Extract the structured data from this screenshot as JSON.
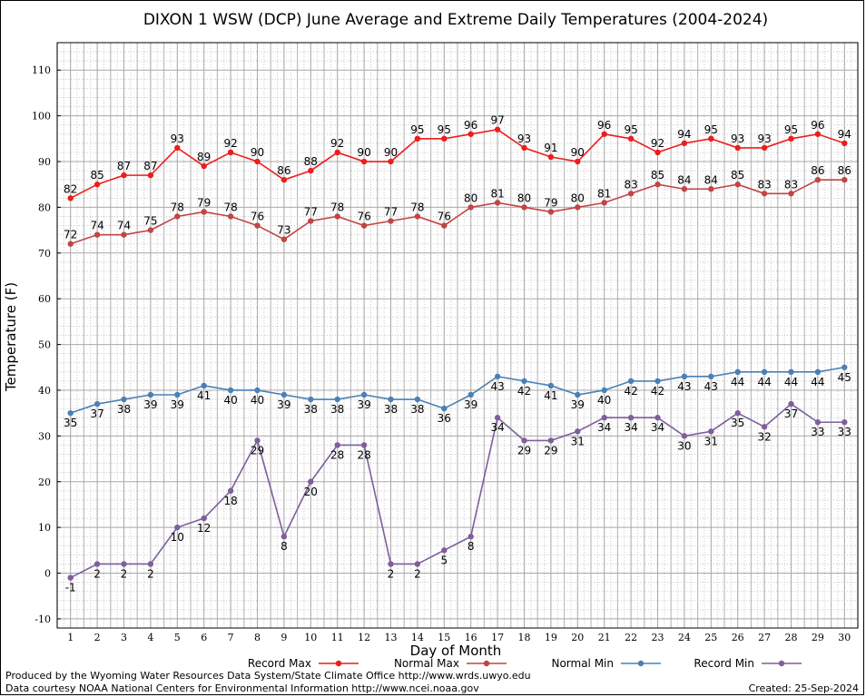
{
  "chart_data": {
    "type": "line",
    "title": "DIXON 1 WSW (DCP) June Average and Extreme Daily Temperatures (2004-2024)",
    "xlabel": "Day of Month",
    "ylabel": "Temperature (F)",
    "ylim": [
      -12,
      116
    ],
    "yticks": [
      -10,
      0,
      10,
      20,
      30,
      40,
      50,
      60,
      70,
      80,
      90,
      100,
      110
    ],
    "x": [
      1,
      2,
      3,
      4,
      5,
      6,
      7,
      8,
      9,
      10,
      11,
      12,
      13,
      14,
      15,
      16,
      17,
      18,
      19,
      20,
      21,
      22,
      23,
      24,
      25,
      26,
      27,
      28,
      29,
      30
    ],
    "grid": true,
    "legend_position": "bottom",
    "series": [
      {
        "name": "Record Max",
        "color": "#ee1c1c",
        "values": [
          82,
          85,
          87,
          87,
          93,
          89,
          92,
          90,
          86,
          88,
          92,
          90,
          90,
          95,
          95,
          96,
          97,
          93,
          91,
          90,
          96,
          95,
          92,
          94,
          95,
          93,
          93,
          95,
          96,
          94
        ]
      },
      {
        "name": "Normal Max",
        "color": "#c04545",
        "values": [
          72,
          74,
          74,
          75,
          78,
          79,
          78,
          76,
          73,
          77,
          78,
          76,
          77,
          78,
          76,
          80,
          81,
          80,
          79,
          80,
          81,
          83,
          85,
          84,
          84,
          85,
          83,
          83,
          86,
          86
        ]
      },
      {
        "name": "Normal Min",
        "color": "#4a80b5",
        "values": [
          35,
          37,
          38,
          39,
          39,
          41,
          40,
          40,
          39,
          38,
          38,
          39,
          38,
          38,
          36,
          39,
          43,
          42,
          41,
          39,
          40,
          42,
          42,
          43,
          43,
          44,
          44,
          44,
          44,
          45
        ]
      },
      {
        "name": "Record Min",
        "color": "#7e5e9c",
        "values": [
          -1,
          2,
          2,
          2,
          10,
          12,
          18,
          29,
          8,
          20,
          28,
          28,
          2,
          2,
          5,
          8,
          34,
          29,
          29,
          31,
          34,
          34,
          34,
          30,
          31,
          35,
          32,
          37,
          33,
          33
        ]
      }
    ]
  },
  "footer": {
    "produced": "Produced by the Wyoming Water Resources Data System/State Climate Office http://www.wrds.uwyo.edu",
    "courtesy": "Data courtesy NOAA National Centers for Environmental Information http://www.ncei.noaa.gov",
    "created": "Created:  25-Sep-2024"
  }
}
